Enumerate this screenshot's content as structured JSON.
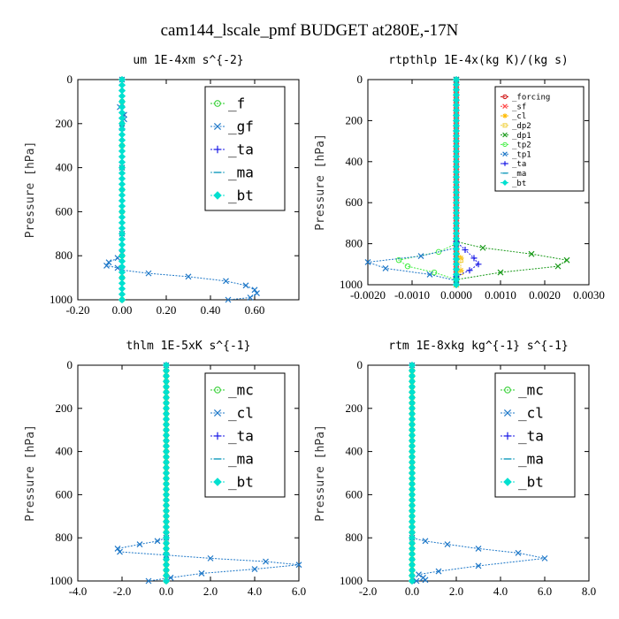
{
  "figure_title": "cam144_lscale_pmf  BUDGET at280E,-17N",
  "chart_data": [
    {
      "type": "line",
      "title": "um  1E-4xm s^{-2}",
      "ylabel": "Pressure [hPa]",
      "xlim": [
        -0.2,
        0.8
      ],
      "ylim": [
        1000,
        0
      ],
      "xticks": [
        "-0.20",
        "0.00",
        "0.20",
        "0.40",
        "0.60"
      ],
      "xtick_values": [
        -0.2,
        0.0,
        0.2,
        0.4,
        0.6
      ],
      "yticks": [
        "0",
        "200",
        "400",
        "600",
        "800",
        "1000"
      ],
      "ytick_values": [
        0,
        200,
        400,
        600,
        800,
        1000
      ],
      "legend_position": "top-right",
      "legend_size": "large",
      "series": [
        {
          "name": "_f",
          "color": "#22cc22",
          "marker": "o",
          "points": [
            [
              0,
              0
            ],
            [
              0,
              100
            ],
            [
              0,
              200
            ],
            [
              0,
              300
            ],
            [
              0,
              400
            ],
            [
              0,
              500
            ],
            [
              0,
              600
            ],
            [
              0,
              700
            ],
            [
              0,
              800
            ],
            [
              0,
              900
            ],
            [
              0,
              1000
            ]
          ]
        },
        {
          "name": "_gf",
          "color": "#1e78c8",
          "marker": "x",
          "points": [
            [
              0,
              0
            ],
            [
              0,
              110
            ],
            [
              -0.01,
              125
            ],
            [
              0.01,
              160
            ],
            [
              0.01,
              180
            ],
            [
              0,
              220
            ],
            [
              0,
              400
            ],
            [
              0,
              700
            ],
            [
              0,
              790
            ],
            [
              -0.02,
              810
            ],
            [
              -0.06,
              830
            ],
            [
              -0.07,
              845
            ],
            [
              -0.02,
              855
            ],
            [
              0,
              865
            ],
            [
              0.12,
              880
            ],
            [
              0.3,
              895
            ],
            [
              0.47,
              915
            ],
            [
              0.56,
              935
            ],
            [
              0.6,
              955
            ],
            [
              0.61,
              970
            ],
            [
              0.58,
              990
            ],
            [
              0.48,
              1000
            ]
          ]
        },
        {
          "name": "_ta",
          "color": "#1a1ae6",
          "marker": "+",
          "points": [
            [
              0,
              0
            ],
            [
              0,
              1000
            ]
          ]
        },
        {
          "name": "_ma",
          "color": "#20a0c0",
          "marker": "-",
          "points": [
            [
              0,
              0
            ],
            [
              0,
              1000
            ]
          ]
        },
        {
          "name": "_bt",
          "color": "#00e0d0",
          "marker": "d",
          "points": [
            [
              0,
              0
            ],
            [
              0,
              1000
            ]
          ]
        }
      ]
    },
    {
      "type": "line",
      "title": "rtpthlp  1E-4x(kg K)/(kg s)",
      "ylabel": "Pressure [hPa]",
      "xlim": [
        -0.002,
        0.003
      ],
      "ylim": [
        1000,
        0
      ],
      "xticks": [
        "-0.0020",
        "-0.0010",
        "0.0000",
        "0.0010",
        "0.0020",
        "0.0030"
      ],
      "xtick_values": [
        -0.002,
        -0.001,
        0.0,
        0.001,
        0.002,
        0.003
      ],
      "yticks": [
        "0",
        "200",
        "400",
        "600",
        "800",
        "1000"
      ],
      "ytick_values": [
        0,
        200,
        400,
        600,
        800,
        1000
      ],
      "legend_position": "top-right",
      "legend_size": "small",
      "series": [
        {
          "name": "_forcing",
          "color": "#cc0000",
          "marker": "o",
          "points": [
            [
              0,
              0
            ],
            [
              0,
              1000
            ]
          ]
        },
        {
          "name": "_sf",
          "color": "#ff4444",
          "marker": "x",
          "points": [
            [
              0,
              0
            ],
            [
              0,
              1000
            ]
          ]
        },
        {
          "name": "_cl",
          "color": "#ffbb00",
          "marker": "*",
          "points": [
            [
              0,
              0
            ],
            [
              0,
              800
            ],
            [
              0.0001,
              870
            ],
            [
              0.0001,
              930
            ],
            [
              0,
              1000
            ]
          ]
        },
        {
          "name": "_dp2",
          "color": "#f0d040",
          "marker": "s",
          "points": [
            [
              0,
              0
            ],
            [
              0,
              800
            ],
            [
              0.0001,
              880
            ],
            [
              0.0001,
              940
            ],
            [
              0,
              1000
            ]
          ]
        },
        {
          "name": "_dp1",
          "color": "#1a9a1a",
          "marker": "x",
          "points": [
            [
              0,
              0
            ],
            [
              0,
              790
            ],
            [
              0.0006,
              820
            ],
            [
              0.0017,
              850
            ],
            [
              0.0025,
              880
            ],
            [
              0.0023,
              910
            ],
            [
              0.001,
              940
            ],
            [
              0,
              975
            ]
          ]
        },
        {
          "name": "_tp2",
          "color": "#44ee44",
          "marker": "o",
          "points": [
            [
              0,
              0
            ],
            [
              0,
              800
            ],
            [
              -0.0004,
              840
            ],
            [
              -0.0013,
              880
            ],
            [
              -0.0011,
              910
            ],
            [
              -0.0005,
              940
            ],
            [
              0,
              975
            ]
          ]
        },
        {
          "name": "_tp1",
          "color": "#1e78c8",
          "marker": "x",
          "points": [
            [
              0,
              0
            ],
            [
              0,
              820
            ],
            [
              -0.0008,
              860
            ],
            [
              -0.002,
              890
            ],
            [
              -0.0016,
              920
            ],
            [
              -0.0006,
              950
            ],
            [
              0,
              980
            ]
          ]
        },
        {
          "name": "_ta",
          "color": "#1a1ae6",
          "marker": "+",
          "points": [
            [
              0,
              0
            ],
            [
              0,
              790
            ],
            [
              0.0002,
              830
            ],
            [
              0.0004,
              870
            ],
            [
              0.0005,
              900
            ],
            [
              0.0003,
              930
            ],
            [
              0,
              960
            ]
          ]
        },
        {
          "name": "_ma",
          "color": "#20a0c0",
          "marker": "-",
          "points": [
            [
              0,
              0
            ],
            [
              0,
              1000
            ]
          ]
        },
        {
          "name": "_bt",
          "color": "#00e0d0",
          "marker": "d",
          "points": [
            [
              0,
              0
            ],
            [
              0,
              1000
            ]
          ]
        }
      ]
    },
    {
      "type": "line",
      "title": "thlm  1E-5xK s^{-1}",
      "ylabel": "Pressure [hPa]",
      "xlim": [
        -4.0,
        6.0
      ],
      "ylim": [
        1000,
        0
      ],
      "xticks": [
        "-4.0",
        "-2.0",
        "0.0",
        "2.0",
        "4.0",
        "6.0"
      ],
      "xtick_values": [
        -4.0,
        -2.0,
        0.0,
        2.0,
        4.0,
        6.0
      ],
      "yticks": [
        "0",
        "200",
        "400",
        "600",
        "800",
        "1000"
      ],
      "ytick_values": [
        0,
        200,
        400,
        600,
        800,
        1000
      ],
      "legend_position": "top-right",
      "legend_size": "large",
      "series": [
        {
          "name": "_mc",
          "color": "#22cc22",
          "marker": "o",
          "points": [
            [
              0,
              0
            ],
            [
              0,
              1000
            ]
          ]
        },
        {
          "name": "_cl",
          "color": "#1e78c8",
          "marker": "x",
          "points": [
            [
              0,
              0
            ],
            [
              0,
              800
            ],
            [
              -0.4,
              815
            ],
            [
              -1.2,
              830
            ],
            [
              -2.2,
              850
            ],
            [
              -2.1,
              865
            ],
            [
              0,
              880
            ],
            [
              2.0,
              895
            ],
            [
              4.5,
              910
            ],
            [
              6.0,
              925
            ],
            [
              4.0,
              945
            ],
            [
              1.6,
              965
            ],
            [
              0.2,
              985
            ],
            [
              -0.8,
              1000
            ]
          ]
        },
        {
          "name": "_ta",
          "color": "#1a1ae6",
          "marker": "+",
          "points": [
            [
              0,
              0
            ],
            [
              0,
              1000
            ]
          ]
        },
        {
          "name": "_ma",
          "color": "#20a0c0",
          "marker": "-",
          "points": [
            [
              0,
              0
            ],
            [
              0,
              1000
            ]
          ]
        },
        {
          "name": "_bt",
          "color": "#00e0d0",
          "marker": "d",
          "points": [
            [
              0,
              0
            ],
            [
              0,
              1000
            ]
          ]
        }
      ]
    },
    {
      "type": "line",
      "title": "rtm  1E-8xkg kg^{-1} s^{-1}",
      "ylabel": "Pressure [hPa]",
      "xlim": [
        -2.0,
        8.0
      ],
      "ylim": [
        1000,
        0
      ],
      "xticks": [
        "-2.0",
        "0.0",
        "2.0",
        "4.0",
        "6.0",
        "8.0"
      ],
      "xtick_values": [
        -2.0,
        0.0,
        2.0,
        4.0,
        6.0,
        8.0
      ],
      "yticks": [
        "0",
        "200",
        "400",
        "600",
        "800",
        "1000"
      ],
      "ytick_values": [
        0,
        200,
        400,
        600,
        800,
        1000
      ],
      "legend_position": "top-right",
      "legend_size": "large",
      "series": [
        {
          "name": "_mc",
          "color": "#22cc22",
          "marker": "o",
          "points": [
            [
              0,
              0
            ],
            [
              0,
              1000
            ]
          ]
        },
        {
          "name": "_cl",
          "color": "#1e78c8",
          "marker": "x",
          "points": [
            [
              0,
              0
            ],
            [
              0,
              800
            ],
            [
              0.6,
              815
            ],
            [
              1.6,
              830
            ],
            [
              3.0,
              850
            ],
            [
              4.8,
              870
            ],
            [
              6.0,
              895
            ],
            [
              3.0,
              930
            ],
            [
              1.2,
              955
            ],
            [
              0.3,
              970
            ],
            [
              0.5,
              985
            ],
            [
              0.6,
              995
            ],
            [
              0.2,
              1000
            ]
          ]
        },
        {
          "name": "_ta",
          "color": "#1a1ae6",
          "marker": "+",
          "points": [
            [
              0,
              0
            ],
            [
              0,
              1000
            ]
          ]
        },
        {
          "name": "_ma",
          "color": "#20a0c0",
          "marker": "-",
          "points": [
            [
              0,
              0
            ],
            [
              0,
              1000
            ]
          ]
        },
        {
          "name": "_bt",
          "color": "#00e0d0",
          "marker": "d",
          "points": [
            [
              0,
              0
            ],
            [
              0,
              1000
            ]
          ]
        }
      ]
    }
  ]
}
